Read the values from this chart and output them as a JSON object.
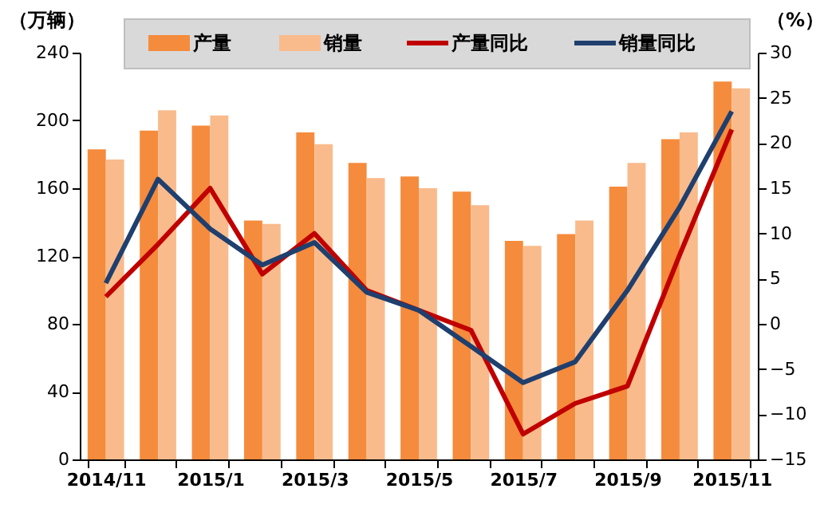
{
  "chart_data": {
    "type": "bar",
    "ylabel": "（万辆）",
    "y2label": "（%）",
    "categories": [
      "2014/11",
      null,
      "2015/1",
      null,
      "2015/3",
      null,
      "2015/5",
      null,
      "2015/7",
      null,
      "2015/9",
      null,
      "2015/11"
    ],
    "series": [
      {
        "name": "产量",
        "color": "#f58b3c",
        "values": [
          183,
          194,
          197,
          141,
          193,
          175,
          167,
          158,
          129,
          133,
          161,
          189,
          223
        ]
      },
      {
        "name": "销量",
        "color": "#f9bb8c",
        "values": [
          177,
          206,
          203,
          139,
          186,
          166,
          160,
          150,
          126,
          141,
          175,
          193,
          219
        ]
      },
      {
        "name": "产量同比",
        "type": "line",
        "axis": "y2",
        "color": "#c00000",
        "values": [
          3.0,
          8.8,
          15.0,
          5.5,
          10.0,
          3.7,
          1.5,
          -0.7,
          -12.2,
          -8.8,
          -6.9,
          7.6,
          21.5
        ]
      },
      {
        "name": "销量同比",
        "type": "line",
        "axis": "y2",
        "color": "#1f3f6e",
        "values": [
          4.5,
          16.0,
          10.5,
          6.5,
          9.0,
          3.5,
          1.5,
          -2.5,
          -6.5,
          -4.2,
          3.7,
          12.9,
          23.5
        ]
      }
    ],
    "ylim": [
      0,
      240
    ],
    "yticks": [
      0,
      40,
      80,
      120,
      160,
      200,
      240
    ],
    "y2lim": [
      -15,
      30
    ],
    "y2ticks": [
      -15,
      -10,
      -5,
      0,
      5,
      10,
      15,
      20,
      25,
      30
    ],
    "grid": false,
    "legend": "top",
    "line_style": "solid",
    "marker": "none"
  }
}
